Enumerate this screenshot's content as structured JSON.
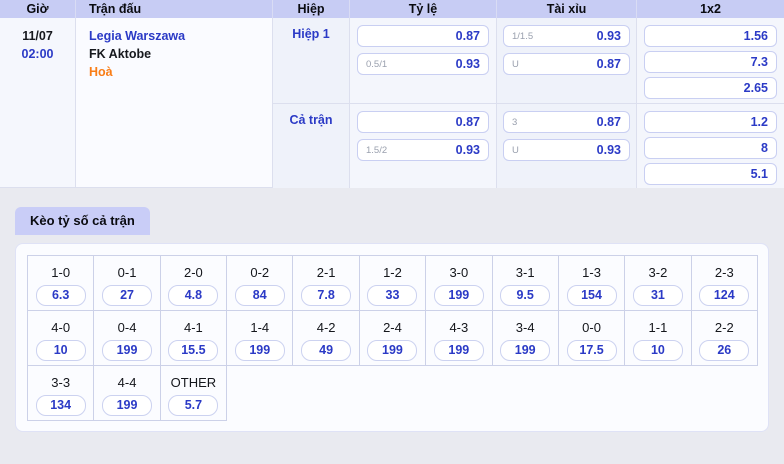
{
  "table": {
    "headers": {
      "gio": "Giờ",
      "tran_dau": "Trận đấu",
      "hiep": "Hiệp",
      "ty_le": "Tỷ lệ",
      "tai_xiu": "Tài xỉu",
      "one_x_two": "1x2"
    },
    "match": {
      "date": "11/07",
      "time": "02:00",
      "home_team": "Legia Warszawa",
      "away_team": "FK Aktobe",
      "draw_label": "Hoà"
    },
    "sections": [
      {
        "label": "Hiệp 1",
        "handicap": [
          {
            "line": "",
            "odds": "0.87"
          },
          {
            "line": "0.5/1",
            "odds": "0.93"
          }
        ],
        "over_under": [
          {
            "line": "1/1.5",
            "odds": "0.93"
          },
          {
            "line": "U",
            "odds": "0.87"
          }
        ],
        "one_x_two": [
          {
            "odds": "1.56"
          },
          {
            "odds": "7.3"
          },
          {
            "odds": "2.65"
          }
        ]
      },
      {
        "label": "Cả trận",
        "handicap": [
          {
            "line": "",
            "odds": "0.87"
          },
          {
            "line": "1.5/2",
            "odds": "0.93"
          }
        ],
        "over_under": [
          {
            "line": "3",
            "odds": "0.87"
          },
          {
            "line": "U",
            "odds": "0.93"
          }
        ],
        "one_x_two": [
          {
            "odds": "1.2"
          },
          {
            "odds": "8"
          },
          {
            "odds": "5.1"
          }
        ]
      }
    ]
  },
  "correct_score": {
    "tab_label": "Kèo tỷ số cả trận",
    "rows": [
      [
        {
          "score": "1-0",
          "odds": "6.3"
        },
        {
          "score": "0-1",
          "odds": "27"
        },
        {
          "score": "2-0",
          "odds": "4.8"
        },
        {
          "score": "0-2",
          "odds": "84"
        },
        {
          "score": "2-1",
          "odds": "7.8"
        },
        {
          "score": "1-2",
          "odds": "33"
        },
        {
          "score": "3-0",
          "odds": "199"
        },
        {
          "score": "3-1",
          "odds": "9.5"
        },
        {
          "score": "1-3",
          "odds": "154"
        },
        {
          "score": "3-2",
          "odds": "31"
        },
        {
          "score": "2-3",
          "odds": "124"
        }
      ],
      [
        {
          "score": "4-0",
          "odds": "10"
        },
        {
          "score": "0-4",
          "odds": "199"
        },
        {
          "score": "4-1",
          "odds": "15.5"
        },
        {
          "score": "1-4",
          "odds": "199"
        },
        {
          "score": "4-2",
          "odds": "49"
        },
        {
          "score": "2-4",
          "odds": "199"
        },
        {
          "score": "4-3",
          "odds": "199"
        },
        {
          "score": "3-4",
          "odds": "199"
        },
        {
          "score": "0-0",
          "odds": "17.5"
        },
        {
          "score": "1-1",
          "odds": "10"
        },
        {
          "score": "2-2",
          "odds": "26"
        }
      ],
      [
        {
          "score": "3-3",
          "odds": "134"
        },
        {
          "score": "4-4",
          "odds": "199"
        },
        {
          "score": "OTHER",
          "odds": "5.7"
        }
      ]
    ]
  },
  "colors": {
    "accent_blue": "#2b3ac6",
    "accent_orange": "#f97d16",
    "header_bg": "#c7ccf4",
    "tab_bg": "#c9cdf7"
  }
}
